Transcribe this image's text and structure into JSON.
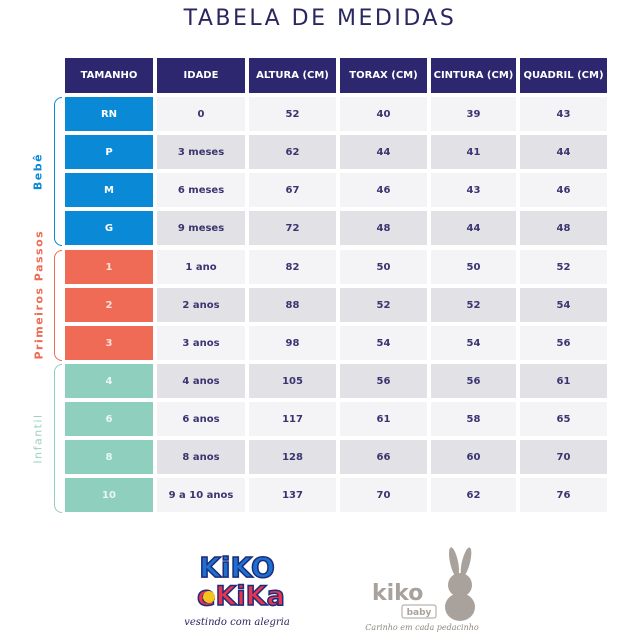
{
  "title": "TABELA DE MEDIDAS",
  "columns": [
    "TAMANHO",
    "IDADE",
    "ALTURA (CM)",
    "TORAX (CM)",
    "CINTURA (CM)",
    "QUADRIL (CM)"
  ],
  "groups": [
    {
      "label": "Bebê",
      "color": "#0a8ad6"
    },
    {
      "label": "Primeiros Passos",
      "color": "#ef6b55"
    },
    {
      "label": "Infantil",
      "color": "#8ecfbe"
    }
  ],
  "rows": [
    {
      "tamanho": "RN",
      "idade": "0",
      "altura": "52",
      "torax": "40",
      "cintura": "39",
      "quadril": "43",
      "group": "bebe"
    },
    {
      "tamanho": "P",
      "idade": "3 meses",
      "altura": "62",
      "torax": "44",
      "cintura": "41",
      "quadril": "44",
      "group": "bebe"
    },
    {
      "tamanho": "M",
      "idade": "6 meses",
      "altura": "67",
      "torax": "46",
      "cintura": "43",
      "quadril": "46",
      "group": "bebe"
    },
    {
      "tamanho": "G",
      "idade": "9 meses",
      "altura": "72",
      "torax": "48",
      "cintura": "44",
      "quadril": "48",
      "group": "bebe"
    },
    {
      "tamanho": "1",
      "idade": "1 ano",
      "altura": "82",
      "torax": "50",
      "cintura": "50",
      "quadril": "52",
      "group": "primeiros"
    },
    {
      "tamanho": "2",
      "idade": "2 anos",
      "altura": "88",
      "torax": "52",
      "cintura": "52",
      "quadril": "54",
      "group": "primeiros"
    },
    {
      "tamanho": "3",
      "idade": "3 anos",
      "altura": "98",
      "torax": "54",
      "cintura": "54",
      "quadril": "56",
      "group": "primeiros"
    },
    {
      "tamanho": "4",
      "idade": "4 anos",
      "altura": "105",
      "torax": "56",
      "cintura": "56",
      "quadril": "61",
      "group": "infantil"
    },
    {
      "tamanho": "6",
      "idade": "6 anos",
      "altura": "117",
      "torax": "61",
      "cintura": "58",
      "quadril": "65",
      "group": "infantil"
    },
    {
      "tamanho": "8",
      "idade": "8 anos",
      "altura": "128",
      "torax": "66",
      "cintura": "60",
      "quadril": "70",
      "group": "infantil"
    },
    {
      "tamanho": "10",
      "idade": "9 a 10 anos",
      "altura": "137",
      "torax": "70",
      "cintura": "62",
      "quadril": "76",
      "group": "infantil"
    }
  ],
  "logos": {
    "kiko_e_kika": {
      "line1": "KiKO",
      "line2": "eKiKa",
      "tagline": "vestindo com alegria"
    },
    "kiko_baby": {
      "brand": "kiko",
      "sub": "baby",
      "tagline": "Carinho em cada pedacinho"
    }
  }
}
